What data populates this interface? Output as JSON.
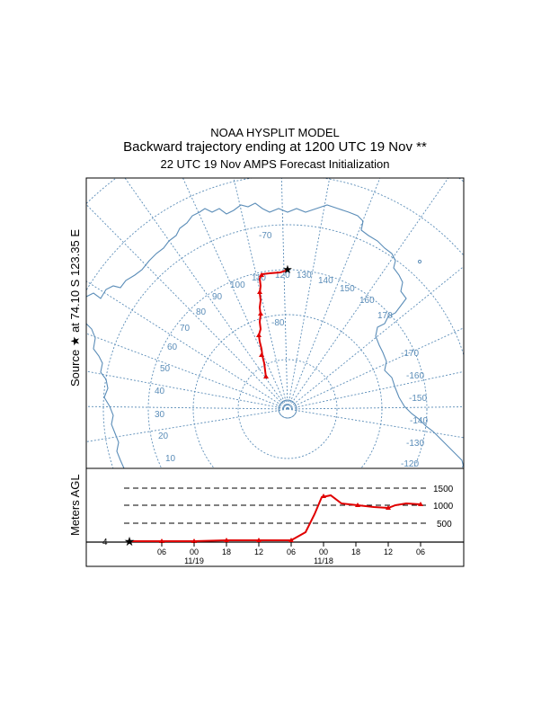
{
  "header": {
    "model": "NOAA HYSPLIT MODEL",
    "title": "Backward trajectory ending at 1200 UTC 19 Nov **",
    "subtitle": "22 UTC 19 Nov    AMPS  Forecast Initialization"
  },
  "map": {
    "source_label": "Source ★ at  74.10 S  123.35 E",
    "lat_label": "-70",
    "lon_labels_left": [
      "90",
      "80",
      "70",
      "60",
      "50",
      "40",
      "30",
      "20",
      "10"
    ],
    "lon_labels_top": [
      "110",
      "100",
      "120",
      "130",
      "140",
      "150",
      "160",
      "170"
    ],
    "lon_labels_right": [
      "-170",
      "-160",
      "-150",
      "-140",
      "-130",
      "-120"
    ],
    "center_label": "-80",
    "grid_color": "#5b8db8",
    "coast_color": "#5b8db8",
    "trajectory_color": "#e00000"
  },
  "profile": {
    "ylabel": "Meters AGL",
    "levels": [
      "1500",
      "1000",
      "500"
    ],
    "ground_label": "4",
    "x_ticks": [
      "06",
      "00",
      "18",
      "12",
      "06",
      "00",
      "18",
      "12",
      "06"
    ],
    "date_labels": [
      "11/19",
      "11/18"
    ]
  },
  "chart_data": {
    "type": "line",
    "series": [
      {
        "values": [
          [
            0,
            4
          ],
          [
            6,
            4
          ],
          [
            12,
            4
          ],
          [
            18,
            10
          ],
          [
            24,
            10
          ],
          [
            30,
            10
          ],
          [
            33,
            250
          ],
          [
            34,
            700
          ],
          [
            35,
            1050
          ],
          [
            37,
            1150
          ],
          [
            40,
            980
          ],
          [
            44,
            920
          ],
          [
            48,
            880
          ],
          [
            50,
            920
          ],
          [
            54,
            1000
          ],
          [
            58,
            980
          ]
        ]
      }
    ],
    "xlabel": "",
    "ylabel": "Meters AGL",
    "x_ticks": [
      "06",
      "00",
      "18",
      "12",
      "06",
      "00",
      "18",
      "12",
      "06"
    ],
    "y_ticks": [
      "1500",
      "1000",
      "500"
    ],
    "ylim": [
      0,
      1700
    ],
    "grid": true
  }
}
